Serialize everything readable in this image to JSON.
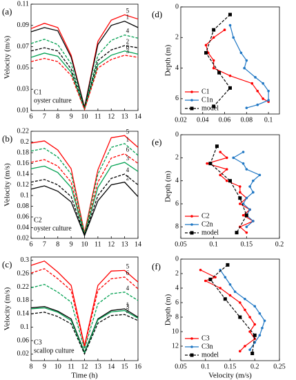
{
  "chart_data": [
    {
      "type": "line",
      "panel_label": "(a)",
      "ylabel": "Velocity (m/s)",
      "annotations": [
        "C1",
        "oyster culture"
      ],
      "x": [
        6,
        7,
        8,
        9,
        10,
        11,
        12,
        13,
        14
      ],
      "xlim": [
        6,
        14
      ],
      "xticks": [
        6,
        7,
        8,
        9,
        10,
        11,
        12,
        13,
        14
      ],
      "ylim": [
        0.01,
        0.11
      ],
      "yticks": [
        0.01,
        0.03,
        0.05,
        0.07,
        0.09,
        0.11
      ],
      "series": [
        {
          "name": "5",
          "color": "#ff0000",
          "dash": false,
          "values": [
            0.087,
            0.092,
            0.088,
            0.062,
            0.013,
            0.075,
            0.095,
            0.1,
            0.096
          ]
        },
        {
          "name": "1",
          "color": "#000000",
          "dash": false,
          "values": [
            0.084,
            0.088,
            0.085,
            0.06,
            0.013,
            0.072,
            0.09,
            0.094,
            0.088
          ]
        },
        {
          "name": "4",
          "color": "#00a050",
          "dash": true,
          "values": [
            0.073,
            0.077,
            0.072,
            0.054,
            0.012,
            0.062,
            0.076,
            0.081,
            0.078
          ]
        },
        {
          "name": "2",
          "color": "#000000",
          "dash": true,
          "values": [
            0.066,
            0.069,
            0.066,
            0.049,
            0.012,
            0.057,
            0.067,
            0.071,
            0.069
          ]
        },
        {
          "name": "6",
          "color": "#00a050",
          "dash": false,
          "values": [
            0.06,
            0.064,
            0.061,
            0.046,
            0.011,
            0.053,
            0.062,
            0.066,
            0.063
          ]
        },
        {
          "name": "3",
          "color": "#ff0000",
          "dash": true,
          "values": [
            0.056,
            0.059,
            0.056,
            0.043,
            0.011,
            0.05,
            0.058,
            0.062,
            0.06
          ]
        }
      ]
    },
    {
      "type": "line",
      "panel_label": "(b)",
      "ylabel": "Velocity (m/s)",
      "annotations": [
        "C2",
        "oyster culture"
      ],
      "x": [
        6,
        7,
        8,
        9,
        10,
        11,
        12,
        13,
        14
      ],
      "xlim": [
        6,
        14
      ],
      "xticks": [
        6,
        7,
        8,
        9,
        10,
        11,
        12,
        13,
        14
      ],
      "ylim": [
        0.02,
        0.22
      ],
      "yticks": [
        0.02,
        0.04,
        0.06,
        0.08,
        0.1,
        0.12,
        0.14,
        0.16,
        0.18,
        0.2,
        0.22
      ],
      "series": [
        {
          "name": "5",
          "color": "#ff0000",
          "dash": false,
          "values": [
            0.198,
            0.202,
            0.185,
            0.15,
            0.03,
            0.148,
            0.208,
            0.212,
            0.19
          ]
        },
        {
          "name": "1",
          "color": "#00a050",
          "dash": true,
          "values": [
            0.183,
            0.188,
            0.172,
            0.14,
            0.029,
            0.14,
            0.19,
            0.197,
            0.175
          ]
        },
        {
          "name": "6",
          "color": "#ff0000",
          "dash": true,
          "values": [
            0.162,
            0.167,
            0.155,
            0.125,
            0.028,
            0.125,
            0.17,
            0.178,
            0.16
          ]
        },
        {
          "name": "3",
          "color": "#00a050",
          "dash": false,
          "values": [
            0.15,
            0.155,
            0.143,
            0.115,
            0.027,
            0.115,
            0.155,
            0.162,
            0.145
          ]
        },
        {
          "name": "4",
          "color": "#000000",
          "dash": true,
          "values": [
            0.125,
            0.13,
            0.12,
            0.098,
            0.026,
            0.1,
            0.132,
            0.14,
            0.12
          ]
        },
        {
          "name": "2",
          "color": "#000000",
          "dash": false,
          "values": [
            0.112,
            0.118,
            0.108,
            0.088,
            0.025,
            0.09,
            0.12,
            0.125,
            0.098
          ]
        }
      ]
    },
    {
      "type": "line",
      "panel_label": "(c)",
      "ylabel": "Velocity (m/s)",
      "xlabel": "Time (h)",
      "annotations": [
        "C3",
        "scallop culture"
      ],
      "x": [
        8,
        9,
        10,
        11,
        12,
        13,
        14,
        15,
        16
      ],
      "xlim": [
        8,
        16
      ],
      "xticks": [
        8,
        9,
        10,
        11,
        12,
        13,
        14,
        15,
        16
      ],
      "ylim": [
        0,
        0.31
      ],
      "yticks": [
        0.02,
        0.06,
        0.1,
        0.14,
        0.18,
        0.22,
        0.26,
        0.3
      ],
      "series": [
        {
          "name": "5",
          "color": "#ff0000",
          "dash": false,
          "values": [
            0.285,
            0.298,
            0.265,
            0.225,
            0.045,
            0.225,
            0.268,
            0.27,
            0.235
          ]
        },
        {
          "name": "6",
          "color": "#ff0000",
          "dash": true,
          "values": [
            0.262,
            0.275,
            0.245,
            0.21,
            0.04,
            0.21,
            0.245,
            0.25,
            0.215
          ]
        },
        {
          "name": "4",
          "color": "#00a050",
          "dash": true,
          "values": [
            0.218,
            0.228,
            0.205,
            0.175,
            0.035,
            0.17,
            0.2,
            0.205,
            0.18
          ]
        },
        {
          "name": "1",
          "color": "#000000",
          "dash": false,
          "values": [
            0.158,
            0.162,
            0.148,
            0.125,
            0.025,
            0.125,
            0.15,
            0.155,
            0.13
          ]
        },
        {
          "name": "3",
          "color": "#00a050",
          "dash": false,
          "values": [
            0.155,
            0.158,
            0.145,
            0.12,
            0.023,
            0.122,
            0.146,
            0.15,
            0.127
          ]
        },
        {
          "name": "2",
          "color": "#000000",
          "dash": true,
          "values": [
            0.14,
            0.145,
            0.132,
            0.11,
            0.02,
            0.112,
            0.135,
            0.138,
            0.12
          ]
        }
      ]
    },
    {
      "type": "profile",
      "panel_label": "(d)",
      "ylabel": "Depth (m)",
      "legend": "lower left",
      "xlim": [
        0.02,
        0.11
      ],
      "xticks": [
        0.02,
        0.04,
        0.06,
        0.08,
        0.1
      ],
      "ylim": [
        0,
        7
      ],
      "yticks": [
        0,
        2,
        4,
        6
      ],
      "y_inverted": true,
      "series": [
        {
          "name": "C1",
          "color": "#ff0000",
          "marker": "circle",
          "dash": false,
          "depth": [
            1.5,
            2.0,
            2.5,
            3.0,
            3.5,
            4.0,
            4.5,
            5.0,
            5.5,
            6.0,
            6.2
          ],
          "values": [
            0.06,
            0.05,
            0.043,
            0.045,
            0.05,
            0.05,
            0.065,
            0.085,
            0.09,
            0.095,
            0.1
          ]
        },
        {
          "name": "C1n",
          "color": "#1f77c4",
          "marker": "circle",
          "dash": false,
          "depth": [
            1.2,
            2.0,
            3.0,
            3.5,
            4.0,
            4.6,
            5.0,
            5.5,
            6.1,
            6.4,
            6.6
          ],
          "values": [
            0.065,
            0.068,
            0.075,
            0.08,
            0.078,
            0.088,
            0.095,
            0.1,
            0.1,
            0.09,
            0.08
          ]
        },
        {
          "name": "model",
          "color": "#000000",
          "marker": "square",
          "dash": true,
          "depth": [
            0.5,
            1.5,
            3.0,
            4.3,
            5.3,
            6.5
          ],
          "values": [
            0.065,
            0.05,
            0.043,
            0.055,
            0.065,
            0.05
          ]
        }
      ]
    },
    {
      "type": "profile",
      "panel_label": "(e)",
      "ylabel": "Depth (m)",
      "legend": "lower left",
      "xlim": [
        0.05,
        0.2
      ],
      "xticks": [
        0.05,
        0.1,
        0.15,
        0.2
      ],
      "ylim": [
        0,
        9
      ],
      "yticks": [
        0,
        2,
        4,
        6,
        8
      ],
      "y_inverted": true,
      "series": [
        {
          "name": "C2",
          "color": "#ff0000",
          "marker": "circle",
          "dash": false,
          "depth": [
            1.5,
            2.0,
            2.5,
            3.0,
            3.5,
            4.0,
            4.5,
            5.0,
            5.5,
            6.0,
            6.5,
            7.0,
            7.5,
            8.0,
            8.5
          ],
          "values": [
            0.11,
            0.12,
            0.09,
            0.12,
            0.11,
            0.12,
            0.14,
            0.14,
            0.15,
            0.14,
            0.155,
            0.145,
            0.16,
            0.14,
            0.15
          ]
        },
        {
          "name": "C2n",
          "color": "#1f77c4",
          "marker": "circle",
          "dash": false,
          "depth": [
            1.5,
            2.0,
            2.5,
            3.0,
            3.5,
            4.0,
            4.5,
            5.0,
            5.5,
            6.0,
            6.5,
            7.0,
            7.5,
            8.0
          ],
          "values": [
            0.145,
            0.13,
            0.145,
            0.15,
            0.17,
            0.16,
            0.155,
            0.16,
            0.15,
            0.145,
            0.155,
            0.15,
            0.16,
            0.15
          ]
        },
        {
          "name": "model",
          "color": "#000000",
          "marker": "square",
          "dash": true,
          "depth": [
            1.0,
            2.5,
            4.0,
            5.5,
            7.0,
            8.5
          ],
          "values": [
            0.105,
            0.095,
            0.125,
            0.14,
            0.15,
            0.135
          ]
        }
      ]
    },
    {
      "type": "profile",
      "panel_label": "(f)",
      "ylabel": "Depth (m)",
      "xlabel": "Velocity (m/s)",
      "legend": "lower left",
      "xlim": [
        0.05,
        0.25
      ],
      "xticks": [
        0.05,
        0.1,
        0.15,
        0.2,
        0.25
      ],
      "ylim": [
        0,
        14
      ],
      "yticks": [
        0,
        2,
        4,
        6,
        8,
        10,
        12
      ],
      "y_inverted": true,
      "series": [
        {
          "name": "C3",
          "color": "#ff0000",
          "marker": "circle",
          "dash": false,
          "depth": [
            1.5,
            2.5,
            3.0,
            4.0,
            5.0,
            6.0,
            7.0,
            8.0,
            9.0,
            10.0,
            11.0,
            12.0,
            12.7
          ],
          "values": [
            0.09,
            0.12,
            0.1,
            0.13,
            0.15,
            0.17,
            0.18,
            0.19,
            0.2,
            0.19,
            0.2,
            0.18,
            0.17
          ]
        },
        {
          "name": "C3n",
          "color": "#1f77c4",
          "marker": "circle",
          "dash": false,
          "depth": [
            1.5,
            2.5,
            3.5,
            4.5,
            5.5,
            6.5,
            7.5,
            8.5,
            9.5,
            10.5,
            11.5,
            12.5
          ],
          "values": [
            0.13,
            0.14,
            0.15,
            0.16,
            0.18,
            0.2,
            0.21,
            0.22,
            0.215,
            0.21,
            0.2,
            0.19
          ]
        },
        {
          "name": "model",
          "color": "#000000",
          "marker": "square",
          "dash": true,
          "depth": [
            0.8,
            2.8,
            5.5,
            8.0,
            10.5,
            13.0
          ],
          "values": [
            0.145,
            0.11,
            0.14,
            0.17,
            0.2,
            0.195
          ]
        }
      ]
    }
  ]
}
